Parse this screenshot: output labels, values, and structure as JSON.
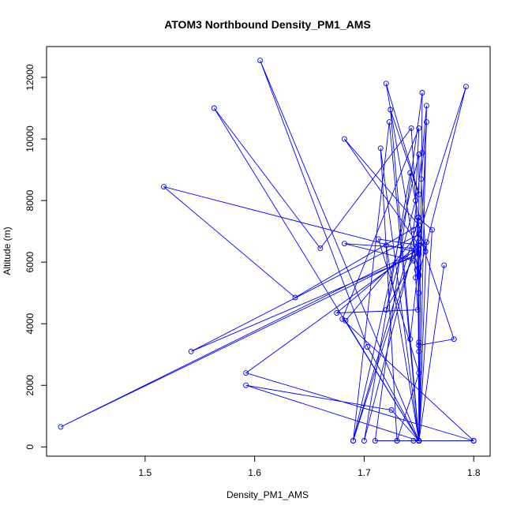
{
  "chart_data": {
    "type": "line",
    "title": "ATOM3 Northbound Density_PM1_AMS",
    "xlabel": "Density_PM1_AMS",
    "ylabel": "Altitude (m)",
    "xlim": [
      1.41,
      1.815
    ],
    "ylim": [
      -300,
      13000
    ],
    "x_ticks": [
      1.5,
      1.6,
      1.7,
      1.8
    ],
    "x_tick_labels": [
      "1.5",
      "1.6",
      "1.7",
      "1.8"
    ],
    "y_ticks": [
      0,
      2000,
      4000,
      6000,
      8000,
      10000,
      12000
    ],
    "y_tick_labels": [
      "0",
      "2000",
      "4000",
      "6000",
      "8000",
      "10000",
      "12000"
    ],
    "grid": false,
    "series": [
      {
        "color": "#0000ff",
        "marker": "open-circle",
        "line": "connected",
        "points": [
          [
            1.75,
            200
          ],
          [
            1.8,
            200
          ],
          [
            1.75,
            200
          ],
          [
            1.75,
            200
          ],
          [
            1.725,
            1200
          ],
          [
            1.592,
            2000
          ],
          [
            1.75,
            200
          ],
          [
            1.75,
            200
          ],
          [
            1.703,
            3250
          ],
          [
            1.605,
            12550
          ],
          [
            1.75,
            200
          ],
          [
            1.71,
            200
          ],
          [
            1.753,
            11500
          ],
          [
            1.75,
            200
          ],
          [
            1.757,
            11080
          ],
          [
            1.753,
            9550
          ],
          [
            1.745,
            7050
          ],
          [
            1.747,
            5500
          ],
          [
            1.749,
            4450
          ],
          [
            1.675,
            4350
          ],
          [
            1.752,
            6650
          ],
          [
            1.742,
            3500
          ],
          [
            1.75,
            200
          ],
          [
            1.75,
            200
          ],
          [
            1.715,
            9700
          ],
          [
            1.73,
            200
          ],
          [
            1.75,
            200
          ],
          [
            1.72,
            6550
          ],
          [
            1.73,
            200
          ],
          [
            1.75,
            2400
          ],
          [
            1.713,
            6750
          ],
          [
            1.75,
            6550
          ],
          [
            1.682,
            10000
          ],
          [
            1.75,
            7200
          ],
          [
            1.75,
            200
          ],
          [
            1.745,
            200
          ],
          [
            1.75,
            200
          ],
          [
            1.75,
            200
          ],
          [
            1.75,
            3300
          ],
          [
            1.75,
            3100
          ],
          [
            1.75,
            6950
          ],
          [
            1.683,
            4100
          ],
          [
            1.75,
            200
          ],
          [
            1.75,
            200
          ],
          [
            1.75,
            200
          ],
          [
            1.75,
            3400
          ],
          [
            1.75,
            3300
          ],
          [
            1.782,
            3500
          ],
          [
            1.75,
            6900
          ],
          [
            1.542,
            3100
          ],
          [
            1.75,
            6250
          ],
          [
            1.743,
            10350
          ],
          [
            1.66,
            6450
          ],
          [
            1.563,
            11000
          ],
          [
            1.75,
            200
          ],
          [
            1.757,
            6650
          ],
          [
            1.592,
            2400
          ],
          [
            1.8,
            200
          ],
          [
            1.68,
            4150
          ],
          [
            1.75,
            10350
          ],
          [
            1.747,
            8000
          ],
          [
            1.72,
            4450
          ],
          [
            1.75,
            6450
          ],
          [
            1.75,
            5800
          ],
          [
            1.748,
            5750
          ],
          [
            1.75,
            6550
          ],
          [
            1.75,
            200
          ],
          [
            1.724,
            10950
          ],
          [
            1.75,
            8200
          ],
          [
            1.72,
            11800
          ],
          [
            1.75,
            5550
          ],
          [
            1.745,
            6050
          ],
          [
            1.682,
            6600
          ],
          [
            1.745,
            6450
          ],
          [
            1.7,
            200
          ],
          [
            1.742,
            8900
          ],
          [
            1.75,
            7450
          ],
          [
            1.69,
            200
          ],
          [
            1.75,
            9500
          ],
          [
            1.75,
            5600
          ],
          [
            1.793,
            11700
          ],
          [
            1.69,
            200
          ],
          [
            1.723,
            10550
          ],
          [
            1.75,
            200
          ],
          [
            1.773,
            5900
          ],
          [
            1.75,
            200
          ],
          [
            1.749,
            7450
          ],
          [
            1.762,
            7050
          ],
          [
            1.75,
            200
          ],
          [
            1.75,
            5000
          ],
          [
            1.757,
            10550
          ],
          [
            1.752,
            8700
          ],
          [
            1.756,
            6350
          ],
          [
            1.75,
            7200
          ],
          [
            1.637,
            4850
          ],
          [
            1.517,
            8450
          ],
          [
            1.75,
            6300
          ],
          [
            1.423,
            650
          ],
          [
            1.75,
            6400
          ]
        ]
      }
    ]
  }
}
